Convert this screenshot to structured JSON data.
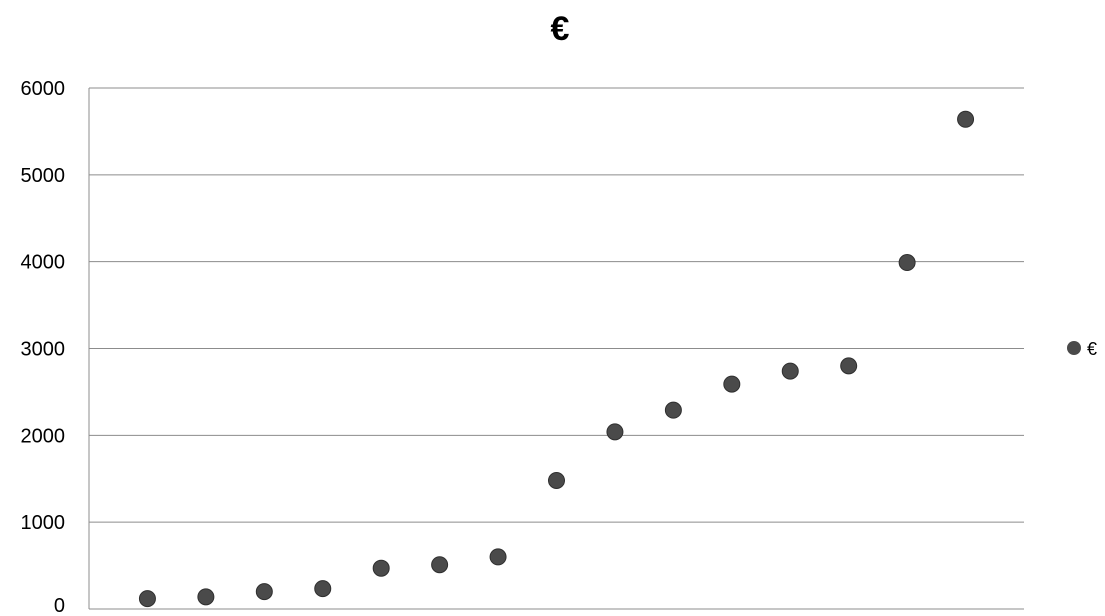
{
  "chart_data": {
    "type": "scatter",
    "title": "€",
    "xlabel": "",
    "ylabel": "",
    "ylim": [
      0,
      6000
    ],
    "y_ticks": [
      0,
      1000,
      2000,
      3000,
      4000,
      5000,
      6000
    ],
    "grid": true,
    "legend_position": "right",
    "point_color": "#4a4a4a",
    "series": [
      {
        "name": "€",
        "x": [
          1,
          2,
          3,
          4,
          5,
          6,
          7,
          8,
          9,
          10,
          11,
          12,
          13,
          14,
          15
        ],
        "values": [
          120,
          140,
          200,
          235,
          470,
          510,
          600,
          1480,
          2040,
          2290,
          2590,
          2740,
          2800,
          3990,
          5640
        ]
      }
    ]
  }
}
